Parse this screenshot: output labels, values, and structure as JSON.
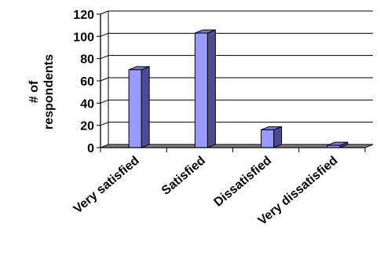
{
  "chart_data": {
    "type": "bar",
    "style": "3d-column",
    "categories": [
      "Very satisfied",
      "Satisfied",
      "Dissatisfied",
      "Very dissatisfied"
    ],
    "values": [
      70,
      103,
      16,
      2
    ],
    "ylabel_lines": [
      "# of",
      "respondents"
    ],
    "xlabel": "",
    "title": "",
    "ylim": [
      0,
      120
    ],
    "yticks": [
      0,
      20,
      40,
      60,
      80,
      100,
      120
    ],
    "grid": true,
    "legend": "none",
    "bar_color": "#9999ff",
    "bar_side_color": "#4b4b99",
    "bar_top_color": "#7c7ccf",
    "floor_color": "#808080"
  }
}
